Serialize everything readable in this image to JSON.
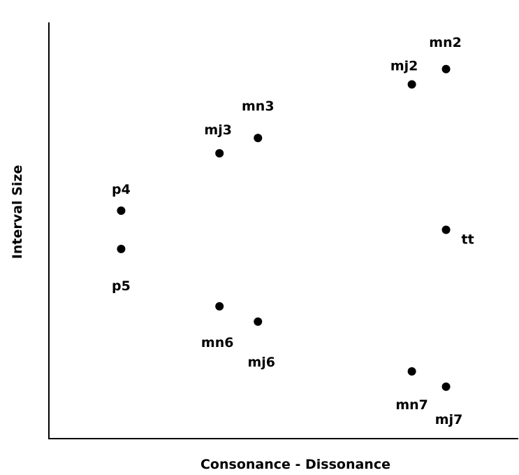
{
  "chart_data": {
    "type": "scatter",
    "title": "",
    "xlabel": "Consonance - Dissonance",
    "ylabel": "Interval Size",
    "grid": false,
    "legend": "none",
    "point_color": "#000000",
    "xlim": [
      0,
      100
    ],
    "ylim": [
      0,
      100
    ],
    "points": [
      {
        "label": "p4",
        "x": 12,
        "y": 55
      },
      {
        "label": "p5",
        "x": 12,
        "y": 45
      },
      {
        "label": "mj3",
        "x": 35,
        "y": 70
      },
      {
        "label": "mn3",
        "x": 44,
        "y": 74
      },
      {
        "label": "mn6",
        "x": 35,
        "y": 30
      },
      {
        "label": "mj6",
        "x": 44,
        "y": 26
      },
      {
        "label": "mj2",
        "x": 80,
        "y": 88
      },
      {
        "label": "mn2",
        "x": 88,
        "y": 92
      },
      {
        "label": "tt",
        "x": 88,
        "y": 50
      },
      {
        "label": "mn7",
        "x": 80,
        "y": 13
      },
      {
        "label": "mj7",
        "x": 88,
        "y": 9
      }
    ]
  }
}
